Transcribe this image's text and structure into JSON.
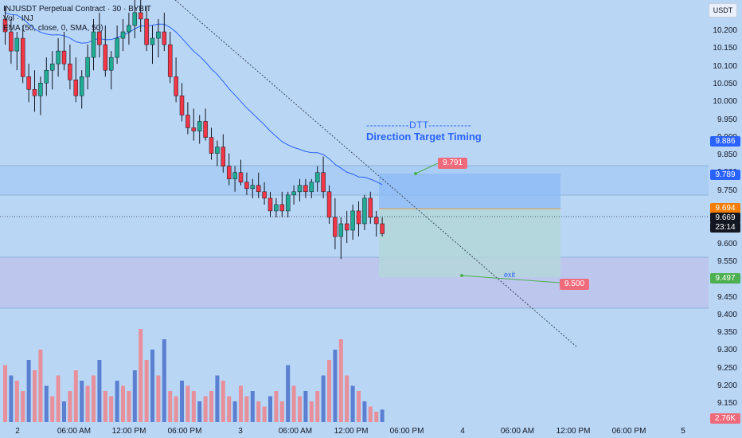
{
  "header": {
    "symbol_line": "INJUSDT Perpetual Contract · 30 · BYBIT",
    "volume_line": "Vol · INJ",
    "ema_line": "EMA (50, close, 0, SMA, 50)"
  },
  "currency": "USDT",
  "price_axis": {
    "ticks": [
      "10.200",
      "10.150",
      "10.100",
      "10.050",
      "10.000",
      "9.950",
      "9.900",
      "9.850",
      "9.800",
      "9.750",
      "9.700",
      "9.650",
      "9.600",
      "9.550",
      "9.500",
      "9.450",
      "9.400",
      "9.350",
      "9.300",
      "9.250",
      "9.200",
      "9.150",
      "9.100"
    ],
    "tags": [
      {
        "text": "9.886",
        "color": "#2962ff"
      },
      {
        "text": "9.789",
        "color": "#2962ff"
      },
      {
        "text": "9.694",
        "color": "#f57c00"
      },
      {
        "text": "9.669",
        "color": "#131722"
      },
      {
        "text": "23:14",
        "color": "#131722"
      },
      {
        "text": "9.497",
        "color": "#4caf50"
      },
      {
        "text": "2.76K",
        "color": "#ef6b7c"
      }
    ]
  },
  "time_axis": [
    "2",
    "06:00 AM",
    "12:00 PM",
    "06:00 PM",
    "3",
    "06:00 AM",
    "12:00 PM",
    "06:00 PM",
    "4",
    "06:00 AM",
    "12:00 PM",
    "06:00 PM",
    "5"
  ],
  "annotations": {
    "dtt_title": "------------DTT------------",
    "dtt_sub": "Direction Target Timing",
    "target_label": "9.791",
    "exit_label": "9.500",
    "exit_text": "exit"
  },
  "colors": {
    "up": "#22ab94",
    "down": "#f23645",
    "ema": "#2962ff",
    "vol_up": "#5b7fd1",
    "vol_down": "#e78f9a"
  },
  "chart_data": {
    "type": "candlestick",
    "y_range": [
      9.08,
      10.3
    ],
    "candles": [
      [
        10.34,
        10.38,
        10.26,
        10.3
      ],
      [
        10.3,
        10.34,
        10.2,
        10.24
      ],
      [
        10.24,
        10.3,
        10.18,
        10.28
      ],
      [
        10.28,
        10.32,
        10.14,
        10.16
      ],
      [
        10.16,
        10.2,
        10.08,
        10.12
      ],
      [
        10.12,
        10.18,
        10.05,
        10.1
      ],
      [
        10.1,
        10.16,
        10.04,
        10.14
      ],
      [
        10.14,
        10.22,
        10.1,
        10.18
      ],
      [
        10.18,
        10.24,
        10.12,
        10.2
      ],
      [
        10.2,
        10.28,
        10.16,
        10.24
      ],
      [
        10.24,
        10.3,
        10.18,
        10.2
      ],
      [
        10.2,
        10.26,
        10.12,
        10.15
      ],
      [
        10.15,
        10.22,
        10.08,
        10.1
      ],
      [
        10.1,
        10.18,
        10.06,
        10.16
      ],
      [
        10.16,
        10.26,
        10.12,
        10.22
      ],
      [
        10.22,
        10.34,
        10.18,
        10.3
      ],
      [
        10.3,
        10.36,
        10.22,
        10.26
      ],
      [
        10.26,
        10.32,
        10.16,
        10.18
      ],
      [
        10.18,
        10.24,
        10.12,
        10.22
      ],
      [
        10.22,
        10.32,
        10.2,
        10.28
      ],
      [
        10.28,
        10.34,
        10.24,
        10.3
      ],
      [
        10.3,
        10.36,
        10.26,
        10.32
      ],
      [
        10.32,
        10.4,
        10.28,
        10.36
      ],
      [
        10.36,
        10.42,
        10.3,
        10.34
      ],
      [
        10.34,
        10.38,
        10.24,
        10.26
      ],
      [
        10.26,
        10.32,
        10.2,
        10.28
      ],
      [
        10.28,
        10.34,
        10.22,
        10.3
      ],
      [
        10.3,
        10.36,
        10.24,
        10.26
      ],
      [
        10.26,
        10.3,
        10.14,
        10.16
      ],
      [
        10.16,
        10.22,
        10.08,
        10.1
      ],
      [
        10.1,
        10.14,
        10.02,
        10.04
      ],
      [
        10.04,
        10.08,
        9.98,
        10.0
      ],
      [
        10.0,
        10.06,
        9.96,
        9.99
      ],
      [
        9.99,
        10.04,
        9.95,
        10.02
      ],
      [
        10.02,
        10.06,
        9.96,
        9.97
      ],
      [
        9.97,
        10.0,
        9.9,
        9.92
      ],
      [
        9.92,
        9.96,
        9.88,
        9.94
      ],
      [
        9.94,
        9.98,
        9.86,
        9.88
      ],
      [
        9.88,
        9.92,
        9.82,
        9.84
      ],
      [
        9.84,
        9.88,
        9.8,
        9.86
      ],
      [
        9.86,
        9.9,
        9.82,
        9.83
      ],
      [
        9.83,
        9.86,
        9.79,
        9.81
      ],
      [
        9.81,
        9.84,
        9.78,
        9.82
      ],
      [
        9.82,
        9.86,
        9.78,
        9.8
      ],
      [
        9.8,
        9.83,
        9.76,
        9.78
      ],
      [
        9.78,
        9.8,
        9.72,
        9.74
      ],
      [
        9.74,
        9.78,
        9.72,
        9.76
      ],
      [
        9.76,
        9.8,
        9.72,
        9.74
      ],
      [
        9.74,
        9.8,
        9.72,
        9.79
      ],
      [
        9.79,
        9.82,
        9.76,
        9.8
      ],
      [
        9.8,
        9.84,
        9.77,
        9.82
      ],
      [
        9.82,
        9.84,
        9.78,
        9.8
      ],
      [
        9.8,
        9.84,
        9.78,
        9.83
      ],
      [
        9.83,
        9.88,
        9.8,
        9.86
      ],
      [
        9.86,
        9.91,
        9.78,
        9.8
      ],
      [
        9.8,
        9.82,
        9.7,
        9.72
      ],
      [
        9.72,
        9.78,
        9.62,
        9.66
      ],
      [
        9.66,
        9.72,
        9.59,
        9.7
      ],
      [
        9.7,
        9.74,
        9.64,
        9.68
      ],
      [
        9.68,
        9.76,
        9.65,
        9.74
      ],
      [
        9.74,
        9.77,
        9.66,
        9.7
      ],
      [
        9.7,
        9.79,
        9.68,
        9.78
      ],
      [
        9.78,
        9.8,
        9.7,
        9.72
      ],
      [
        9.72,
        9.74,
        9.66,
        9.7
      ],
      [
        9.7,
        9.72,
        9.66,
        9.669
      ]
    ],
    "volumes": [
      [
        0.55,
        0
      ],
      [
        0.45,
        1
      ],
      [
        0.4,
        0
      ],
      [
        0.3,
        0
      ],
      [
        0.6,
        1
      ],
      [
        0.5,
        0
      ],
      [
        0.7,
        0
      ],
      [
        0.35,
        1
      ],
      [
        0.25,
        0
      ],
      [
        0.45,
        0
      ],
      [
        0.2,
        1
      ],
      [
        0.3,
        0
      ],
      [
        0.5,
        0
      ],
      [
        0.4,
        1
      ],
      [
        0.35,
        0
      ],
      [
        0.45,
        0
      ],
      [
        0.6,
        1
      ],
      [
        0.3,
        0
      ],
      [
        0.25,
        0
      ],
      [
        0.4,
        1
      ],
      [
        0.35,
        0
      ],
      [
        0.3,
        0
      ],
      [
        0.5,
        1
      ],
      [
        0.9,
        0
      ],
      [
        0.6,
        0
      ],
      [
        0.7,
        1
      ],
      [
        0.45,
        0
      ],
      [
        0.8,
        1
      ],
      [
        0.3,
        0
      ],
      [
        0.25,
        0
      ],
      [
        0.4,
        1
      ],
      [
        0.35,
        0
      ],
      [
        0.3,
        0
      ],
      [
        0.2,
        1
      ],
      [
        0.25,
        0
      ],
      [
        0.3,
        0
      ],
      [
        0.45,
        1
      ],
      [
        0.4,
        0
      ],
      [
        0.25,
        0
      ],
      [
        0.2,
        1
      ],
      [
        0.35,
        0
      ],
      [
        0.25,
        0
      ],
      [
        0.3,
        1
      ],
      [
        0.2,
        0
      ],
      [
        0.15,
        0
      ],
      [
        0.25,
        1
      ],
      [
        0.3,
        0
      ],
      [
        0.2,
        0
      ],
      [
        0.55,
        1
      ],
      [
        0.35,
        0
      ],
      [
        0.25,
        0
      ],
      [
        0.3,
        1
      ],
      [
        0.2,
        0
      ],
      [
        0.3,
        0
      ],
      [
        0.45,
        1
      ],
      [
        0.6,
        0
      ],
      [
        0.7,
        1
      ],
      [
        0.8,
        0
      ],
      [
        0.45,
        0
      ],
      [
        0.35,
        1
      ],
      [
        0.3,
        0
      ],
      [
        0.2,
        1
      ],
      [
        0.15,
        0
      ],
      [
        0.1,
        0
      ],
      [
        0.12,
        1
      ]
    ]
  }
}
